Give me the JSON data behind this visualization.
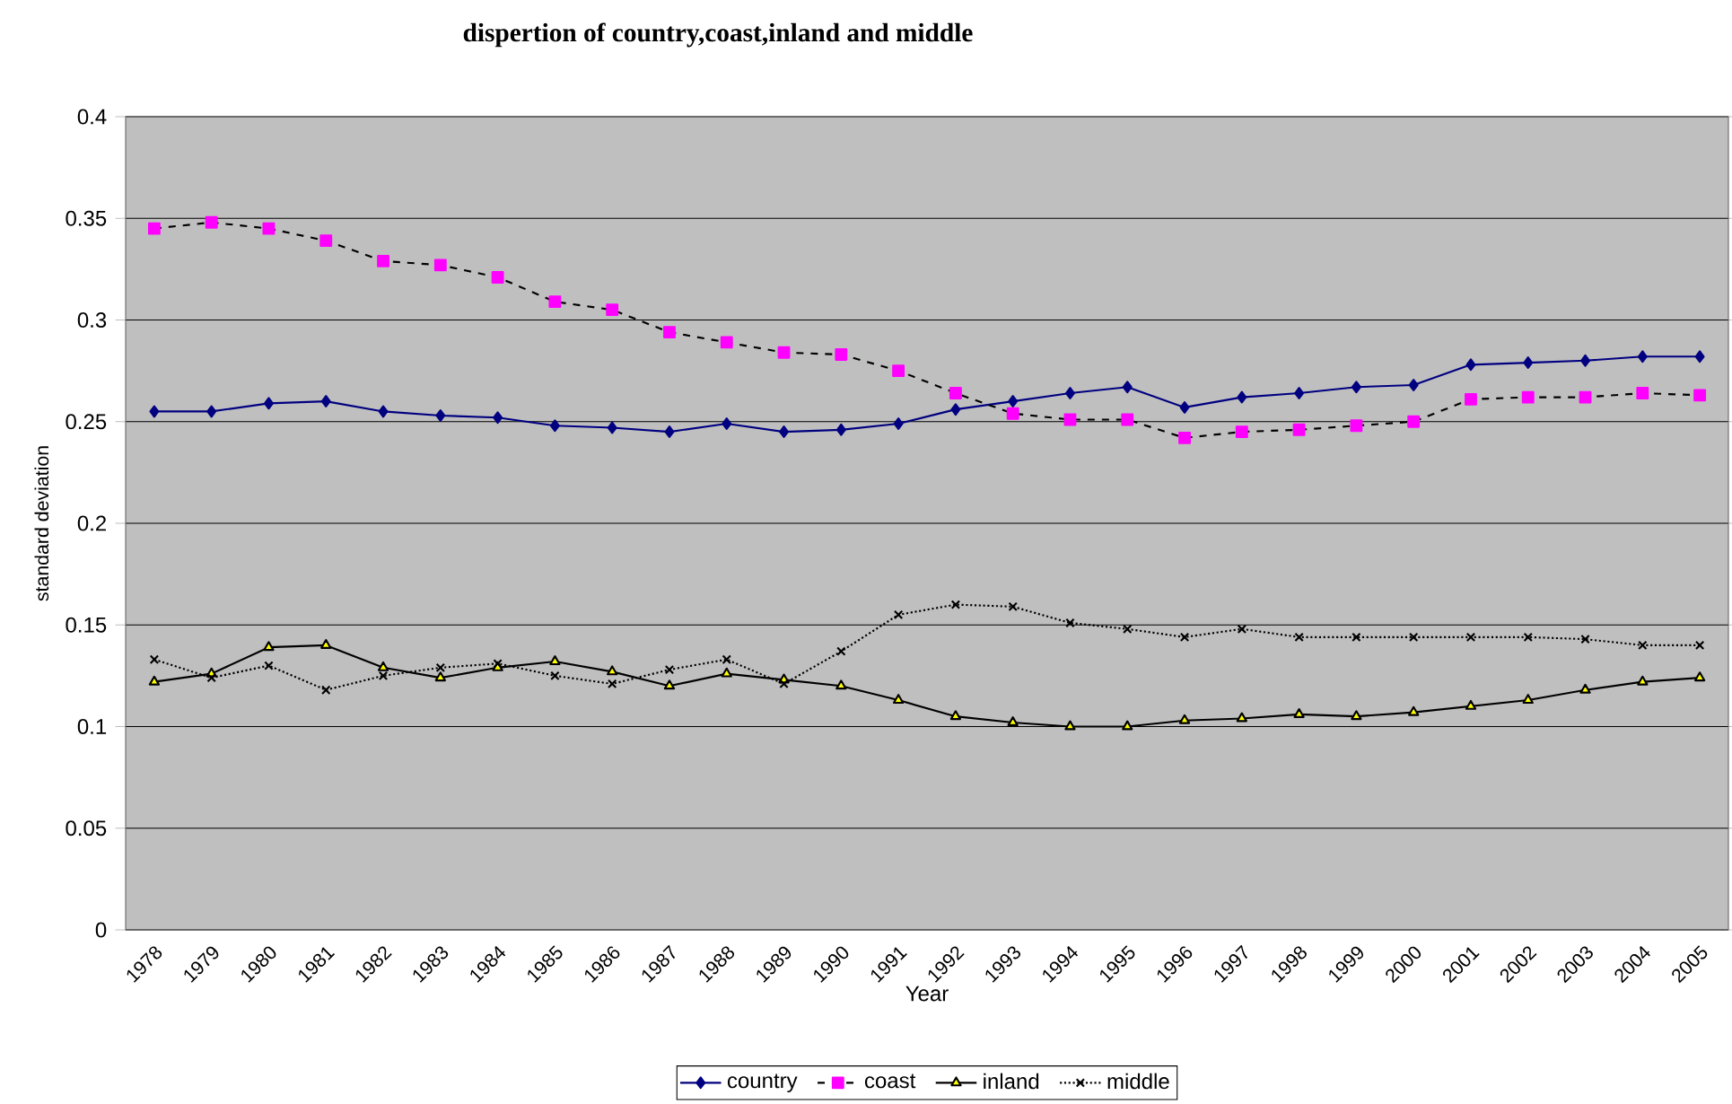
{
  "chart_data": {
    "type": "line",
    "title": "dispertion of country,coast,inland and middle",
    "xlabel": "Year",
    "ylabel": "standard deviation",
    "categories": [
      "1978",
      "1979",
      "1980",
      "1981",
      "1982",
      "1983",
      "1984",
      "1985",
      "1986",
      "1987",
      "1988",
      "1989",
      "1990",
      "1991",
      "1992",
      "1993",
      "1994",
      "1995",
      "1996",
      "1997",
      "1998",
      "1999",
      "2000",
      "2001",
      "2002",
      "2003",
      "2004",
      "2005"
    ],
    "series": [
      {
        "name": "country",
        "color": "#000080",
        "marker": "diamond",
        "line_style": "solid",
        "values": [
          0.255,
          0.255,
          0.259,
          0.26,
          0.255,
          0.253,
          0.252,
          0.248,
          0.247,
          0.245,
          0.249,
          0.245,
          0.246,
          0.249,
          0.256,
          0.26,
          0.264,
          0.267,
          0.257,
          0.262,
          0.264,
          0.267,
          0.268,
          0.278,
          0.279,
          0.28,
          0.282,
          0.282
        ]
      },
      {
        "name": "coast",
        "color": "#ff00ff",
        "marker": "square",
        "line_style": "dashed",
        "values": [
          0.345,
          0.348,
          0.345,
          0.339,
          0.329,
          0.327,
          0.321,
          0.309,
          0.305,
          0.294,
          0.289,
          0.284,
          0.283,
          0.275,
          0.264,
          0.254,
          0.251,
          0.251,
          0.242,
          0.245,
          0.246,
          0.248,
          0.25,
          0.261,
          0.262,
          0.262,
          0.264,
          0.263
        ]
      },
      {
        "name": "inland",
        "color": "#ffff00",
        "marker": "triangle",
        "line_style": "solid",
        "values": [
          0.122,
          0.126,
          0.139,
          0.14,
          0.129,
          0.124,
          0.129,
          0.132,
          0.127,
          0.12,
          0.126,
          0.123,
          0.12,
          0.113,
          0.105,
          0.102,
          0.1,
          0.1,
          0.103,
          0.104,
          0.106,
          0.105,
          0.107,
          0.11,
          0.113,
          0.118,
          0.122,
          0.124
        ]
      },
      {
        "name": "middle",
        "color": "#000000",
        "marker": "cross",
        "line_style": "dotted",
        "values": [
          0.133,
          0.124,
          0.13,
          0.118,
          0.125,
          0.129,
          0.131,
          0.125,
          0.121,
          0.128,
          0.133,
          0.121,
          0.137,
          0.155,
          0.16,
          0.159,
          0.151,
          0.148,
          0.144,
          0.148,
          0.144,
          0.144,
          0.144,
          0.144,
          0.144,
          0.143,
          0.14,
          0.14
        ]
      }
    ],
    "ylim": [
      0,
      0.4
    ],
    "yticks": [
      0,
      0.05,
      0.1,
      0.15,
      0.2,
      0.25,
      0.3,
      0.35,
      0.4
    ],
    "grid": "y",
    "legend": "bottom"
  }
}
